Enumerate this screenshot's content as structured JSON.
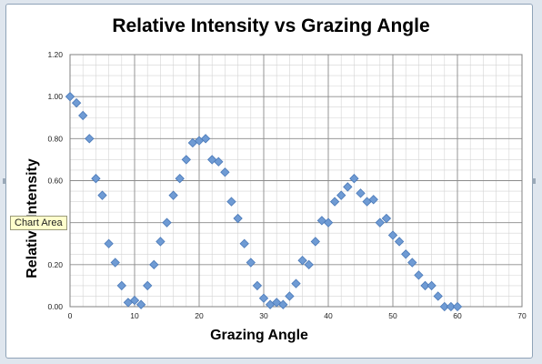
{
  "chart_data": {
    "type": "scatter",
    "title": "Relative Intensity vs Grazing Angle",
    "xlabel": "Grazing Angle",
    "ylabel": "Relative Intensity",
    "xlim": [
      0,
      70
    ],
    "ylim": [
      0,
      1.2
    ],
    "xticks": [
      "0",
      "10",
      "20",
      "30",
      "40",
      "50",
      "60",
      "70"
    ],
    "yticks": [
      "0.00",
      "0.20",
      "0.40",
      "0.60",
      "0.80",
      "1.00",
      "1.20"
    ],
    "grid": true,
    "legend": "none",
    "marker": "diamond",
    "marker_color": "#6f9bd4",
    "points": [
      [
        0,
        1.0
      ],
      [
        1,
        0.97
      ],
      [
        2,
        0.91
      ],
      [
        3,
        0.8
      ],
      [
        4,
        0.61
      ],
      [
        5,
        0.53
      ],
      [
        6,
        0.3
      ],
      [
        7,
        0.21
      ],
      [
        8,
        0.1
      ],
      [
        9,
        0.02
      ],
      [
        10,
        0.03
      ],
      [
        11,
        0.01
      ],
      [
        12,
        0.1
      ],
      [
        13,
        0.2
      ],
      [
        14,
        0.31
      ],
      [
        15,
        0.4
      ],
      [
        16,
        0.53
      ],
      [
        17,
        0.61
      ],
      [
        18,
        0.7
      ],
      [
        19,
        0.78
      ],
      [
        20,
        0.79
      ],
      [
        21,
        0.8
      ],
      [
        22,
        0.7
      ],
      [
        23,
        0.69
      ],
      [
        24,
        0.64
      ],
      [
        25,
        0.5
      ],
      [
        26,
        0.42
      ],
      [
        27,
        0.3
      ],
      [
        28,
        0.21
      ],
      [
        29,
        0.1
      ],
      [
        30,
        0.04
      ],
      [
        31,
        0.01
      ],
      [
        32,
        0.02
      ],
      [
        33,
        0.01
      ],
      [
        34,
        0.05
      ],
      [
        35,
        0.11
      ],
      [
        36,
        0.22
      ],
      [
        37,
        0.2
      ],
      [
        38,
        0.31
      ],
      [
        39,
        0.41
      ],
      [
        40,
        0.4
      ],
      [
        41,
        0.5
      ],
      [
        42,
        0.53
      ],
      [
        43,
        0.57
      ],
      [
        44,
        0.61
      ],
      [
        45,
        0.54
      ],
      [
        46,
        0.5
      ],
      [
        47,
        0.51
      ],
      [
        48,
        0.4
      ],
      [
        49,
        0.42
      ],
      [
        50,
        0.34
      ],
      [
        51,
        0.31
      ],
      [
        52,
        0.25
      ],
      [
        53,
        0.21
      ],
      [
        54,
        0.15
      ],
      [
        55,
        0.1
      ],
      [
        56,
        0.1
      ],
      [
        57,
        0.05
      ],
      [
        58,
        0.0
      ],
      [
        59,
        0.0
      ],
      [
        60,
        0.0
      ]
    ]
  },
  "tooltip": {
    "label": "Chart Area"
  }
}
